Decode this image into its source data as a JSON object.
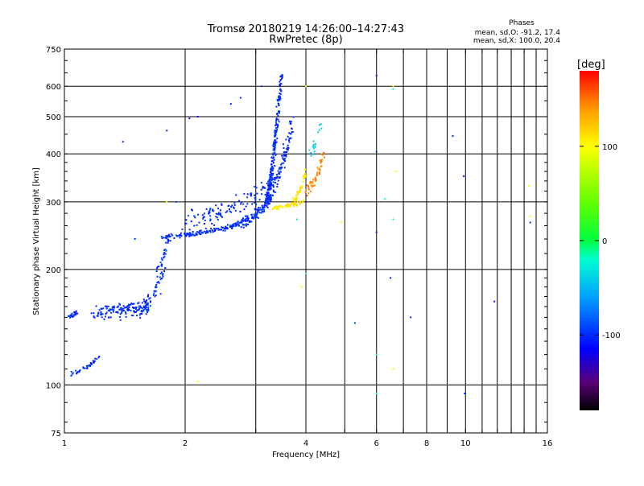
{
  "header": {
    "title_line1": "Tromsø 20180219 14:26:00–14:27:43",
    "title_line2": "RwPretec (8p)",
    "stats_title": "Phases",
    "stats_line1": "mean, sd,O: -91.2, 17.4",
    "stats_line2": "mean, sd,X: 100.0, 20.4"
  },
  "chart_data": {
    "type": "scatter",
    "title": "Tromsø 20180219 14:26:00–14:27:43",
    "subtitle": "RwPretec (8p)",
    "xlabel": "Frequency [MHz]",
    "ylabel": "Stationary phase Virtual Height [km]",
    "xscale": "log",
    "yscale": "log",
    "xlim": [
      1,
      16
    ],
    "ylim": [
      75,
      750
    ],
    "xticks": [
      1,
      2,
      4,
      6,
      8,
      10,
      16
    ],
    "xtick_labels": [
      "1",
      "2",
      "4",
      "6",
      "8",
      "10",
      "16"
    ],
    "yticks": [
      75,
      100,
      200,
      300,
      400,
      500,
      600,
      750
    ],
    "ytick_labels": [
      "75",
      "100",
      "200",
      "300",
      "400",
      "500",
      "600",
      "750"
    ],
    "colorbar": {
      "label": "[deg]",
      "range": [
        -180,
        180
      ],
      "ticks": [
        100,
        0,
        -100
      ],
      "tick_labels": [
        "100",
        "0",
        "-100"
      ],
      "stops": [
        {
          "v": -180,
          "color": "#000000"
        },
        {
          "v": -150,
          "color": "#5a007a"
        },
        {
          "v": -115,
          "color": "#0000ff"
        },
        {
          "v": -60,
          "color": "#00a0ff"
        },
        {
          "v": -20,
          "color": "#00ffd0"
        },
        {
          "v": 0,
          "color": "#00ff40"
        },
        {
          "v": 40,
          "color": "#60ff00"
        },
        {
          "v": 100,
          "color": "#ffff00"
        },
        {
          "v": 140,
          "color": "#ff9900"
        },
        {
          "v": 180,
          "color": "#ff0000"
        }
      ]
    },
    "series": [
      {
        "name": "E-layer trace",
        "phase": -100,
        "segments": [
          {
            "f0": 1.03,
            "f1": 1.22,
            "h0": 107,
            "h1": 118,
            "n": 40,
            "jf": 0.01,
            "jh": 2
          }
        ]
      },
      {
        "name": "F1 low trace",
        "phase": -100,
        "segments": [
          {
            "f0": 1.02,
            "f1": 1.08,
            "h0": 150,
            "h1": 155,
            "n": 22,
            "jf": 0.015,
            "jh": 3
          },
          {
            "f0": 1.2,
            "f1": 1.62,
            "h0": 155,
            "h1": 160,
            "n": 150,
            "jf": 0.05,
            "jh": 10
          },
          {
            "f0": 1.55,
            "f1": 1.78,
            "h0": 160,
            "h1": 200,
            "n": 40,
            "jf": 0.04,
            "jh": 12
          },
          {
            "f0": 1.7,
            "f1": 1.82,
            "h0": 200,
            "h1": 245,
            "n": 30,
            "jf": 0.03,
            "jh": 10
          }
        ]
      },
      {
        "name": "F2 O-mode trace",
        "phase": -100,
        "segments": [
          {
            "f0": 1.75,
            "f1": 2.7,
            "h0": 244,
            "h1": 262,
            "n": 130,
            "jf": 0.03,
            "jh": 5
          },
          {
            "f0": 2.7,
            "f1": 3.3,
            "h0": 262,
            "h1": 310,
            "n": 120,
            "jf": 0.04,
            "jh": 12
          },
          {
            "f0": 2.0,
            "f1": 3.2,
            "h0": 270,
            "h1": 330,
            "n": 110,
            "jf": 0.06,
            "jh": 25
          },
          {
            "f0": 3.2,
            "f1": 3.48,
            "h0": 310,
            "h1": 640,
            "n": 230,
            "jf": 0.05,
            "jh": 20
          },
          {
            "f0": 3.3,
            "f1": 3.7,
            "h0": 330,
            "h1": 480,
            "n": 90,
            "jf": 0.06,
            "jh": 30
          }
        ]
      },
      {
        "name": "F2 X-mode trace",
        "phase": 110,
        "segments": [
          {
            "f0": 3.3,
            "f1": 3.95,
            "h0": 290,
            "h1": 300,
            "n": 60,
            "jf": 0.04,
            "jh": 6
          },
          {
            "f0": 3.7,
            "f1": 4.0,
            "h0": 300,
            "h1": 360,
            "n": 50,
            "jf": 0.03,
            "jh": 12
          }
        ]
      },
      {
        "name": "F2 X-mode upper",
        "phase": 145,
        "segments": [
          {
            "f0": 4.0,
            "f1": 4.45,
            "h0": 320,
            "h1": 400,
            "n": 55,
            "jf": 0.04,
            "jh": 18
          }
        ]
      },
      {
        "name": "Upper cyan points",
        "phase": -40,
        "segments": [
          {
            "f0": 4.1,
            "f1": 4.4,
            "h0": 400,
            "h1": 500,
            "n": 18,
            "jf": 0.05,
            "jh": 25
          }
        ]
      },
      {
        "name": "Scattered points",
        "phase": -100,
        "points": [
          [
            1.4,
            430
          ],
          [
            1.8,
            460
          ],
          [
            2.05,
            495
          ],
          [
            2.15,
            500
          ],
          [
            2.6,
            540
          ],
          [
            2.75,
            560
          ],
          [
            3.1,
            600
          ],
          [
            1.5,
            240
          ],
          [
            1.9,
            300
          ],
          [
            6.0,
            640
          ],
          [
            6.0,
            405
          ],
          [
            6.5,
            190
          ],
          [
            7.3,
            150
          ],
          [
            9.3,
            445
          ],
          [
            9.9,
            350
          ],
          [
            9.95,
            95
          ],
          [
            11.8,
            165
          ],
          [
            14.5,
            265
          ],
          [
            5.3,
            145
          ],
          [
            6.0,
            250
          ]
        ]
      },
      {
        "name": "Scattered X points",
        "phase": 100,
        "points": [
          [
            1.8,
            300
          ],
          [
            2.15,
            102
          ],
          [
            3.9,
            180
          ],
          [
            4.9,
            265
          ],
          [
            6.6,
            600
          ],
          [
            6.6,
            110
          ],
          [
            6.7,
            360
          ],
          [
            14.4,
            330
          ],
          [
            14.5,
            275
          ],
          [
            4.0,
            600
          ]
        ]
      },
      {
        "name": "Scattered cyan points",
        "phase": -20,
        "points": [
          [
            6.0,
            120
          ],
          [
            6.6,
            590
          ],
          [
            6.6,
            270
          ],
          [
            6.3,
            305
          ],
          [
            6.0,
            95
          ],
          [
            4.0,
            195
          ],
          [
            3.8,
            270
          ]
        ]
      }
    ]
  }
}
